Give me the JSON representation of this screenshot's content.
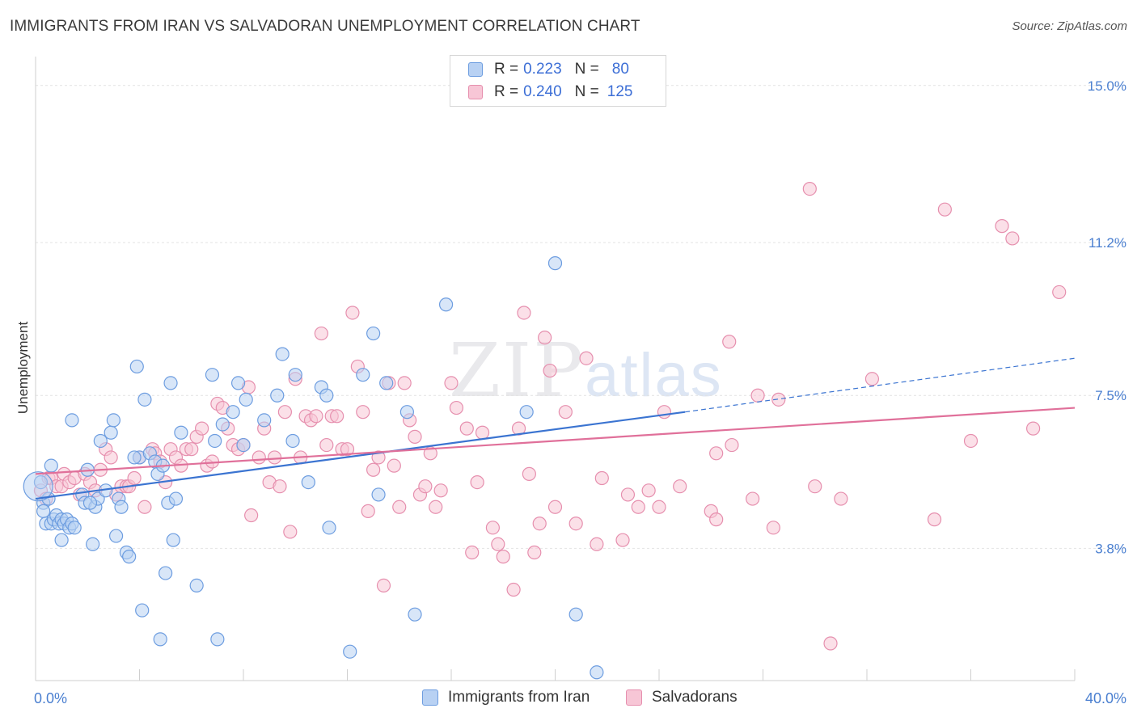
{
  "title": "IMMIGRANTS FROM IRAN VS SALVADORAN UNEMPLOYMENT CORRELATION CHART",
  "source": "Source: ZipAtlas.com",
  "watermark": {
    "zip": "ZIP",
    "atlas": "atlas"
  },
  "legend_top": [
    {
      "r_label": "R =",
      "r_value": "0.223",
      "n_label": "N =",
      "n_value": "80"
    },
    {
      "r_label": "R =",
      "r_value": "0.240",
      "n_label": "N =",
      "n_value": "125"
    }
  ],
  "colors": {
    "blue_fill": "#b8d1f3",
    "blue_stroke": "#6d9de0",
    "blue_line": "#3b74d1",
    "pink_fill": "#f7c6d6",
    "pink_stroke": "#e68fae",
    "pink_line": "#e0709a",
    "grid": "#e2e2e2",
    "axis_text": "#4a7fd0"
  },
  "chart_data": {
    "type": "scatter",
    "title": "IMMIGRANTS FROM IRAN VS SALVADORAN UNEMPLOYMENT CORRELATION CHART",
    "xlabel": "",
    "ylabel": "Unemployment",
    "xlim": [
      0,
      40
    ],
    "ylim": [
      0.6,
      15.7
    ],
    "x_tick_labels": [
      "0.0%",
      "40.0%"
    ],
    "y_ticks": [
      3.8,
      7.5,
      11.2,
      15.0
    ],
    "y_tick_labels": [
      "3.8%",
      "7.5%",
      "11.2%",
      "15.0%"
    ],
    "grid": true,
    "legend": "top-center",
    "series": [
      {
        "name": "Immigrants from Iran",
        "color": "#6d9de0",
        "trend": {
          "x": [
            0,
            25
          ],
          "y": [
            5.0,
            7.1
          ],
          "dashed_to_x": 40,
          "dashed_to_y": 8.4
        },
        "points": [
          [
            0.2,
            5.4
          ],
          [
            0.3,
            4.9
          ],
          [
            0.3,
            4.7
          ],
          [
            0.4,
            4.4
          ],
          [
            0.5,
            5.0
          ],
          [
            0.6,
            4.4
          ],
          [
            0.7,
            4.5
          ],
          [
            0.8,
            4.6
          ],
          [
            0.9,
            4.4
          ],
          [
            1.0,
            4.5
          ],
          [
            1.1,
            4.4
          ],
          [
            1.2,
            4.5
          ],
          [
            1.3,
            4.3
          ],
          [
            1.4,
            4.4
          ],
          [
            1.5,
            4.3
          ],
          [
            1.4,
            6.9
          ],
          [
            1.8,
            5.1
          ],
          [
            1.9,
            4.9
          ],
          [
            2.0,
            5.7
          ],
          [
            2.2,
            3.9
          ],
          [
            2.3,
            4.8
          ],
          [
            2.4,
            5.0
          ],
          [
            2.5,
            6.4
          ],
          [
            2.7,
            5.2
          ],
          [
            2.9,
            6.6
          ],
          [
            3.0,
            6.9
          ],
          [
            3.1,
            4.1
          ],
          [
            3.2,
            5.0
          ],
          [
            3.3,
            4.8
          ],
          [
            3.5,
            3.7
          ],
          [
            3.6,
            3.6
          ],
          [
            3.9,
            8.2
          ],
          [
            4.0,
            6.0
          ],
          [
            4.1,
            2.3
          ],
          [
            4.2,
            7.4
          ],
          [
            4.4,
            6.1
          ],
          [
            4.6,
            5.9
          ],
          [
            4.7,
            5.6
          ],
          [
            4.9,
            5.8
          ],
          [
            5.0,
            3.2
          ],
          [
            5.1,
            4.9
          ],
          [
            5.2,
            7.8
          ],
          [
            5.3,
            4.0
          ],
          [
            5.4,
            5.0
          ],
          [
            5.6,
            6.6
          ],
          [
            4.8,
            1.6
          ],
          [
            6.2,
            2.9
          ],
          [
            6.8,
            8.0
          ],
          [
            6.9,
            6.4
          ],
          [
            7.0,
            1.6
          ],
          [
            7.2,
            6.8
          ],
          [
            7.6,
            7.1
          ],
          [
            7.8,
            7.8
          ],
          [
            8.1,
            7.4
          ],
          [
            8.8,
            6.9
          ],
          [
            9.3,
            7.5
          ],
          [
            9.5,
            8.5
          ],
          [
            9.9,
            6.4
          ],
          [
            10.0,
            8.0
          ],
          [
            10.5,
            5.4
          ],
          [
            11.0,
            7.7
          ],
          [
            11.2,
            7.5
          ],
          [
            11.3,
            4.3
          ],
          [
            12.1,
            1.3
          ],
          [
            12.6,
            8.0
          ],
          [
            13.0,
            9.0
          ],
          [
            13.2,
            5.1
          ],
          [
            13.5,
            7.8
          ],
          [
            14.3,
            7.1
          ],
          [
            14.6,
            2.2
          ],
          [
            15.8,
            9.7
          ],
          [
            18.9,
            7.1
          ],
          [
            20.0,
            10.7
          ],
          [
            20.8,
            2.2
          ],
          [
            21.6,
            0.8
          ],
          [
            0.6,
            5.8
          ],
          [
            1.0,
            4.0
          ],
          [
            2.1,
            4.9
          ],
          [
            3.8,
            6.0
          ],
          [
            8.0,
            6.3
          ]
        ]
      },
      {
        "name": "Salvadorans",
        "color": "#e68fae",
        "trend": {
          "x": [
            0,
            40
          ],
          "y": [
            5.6,
            7.2
          ]
        },
        "points": [
          [
            0.2,
            5.2
          ],
          [
            0.4,
            5.0
          ],
          [
            0.5,
            5.5
          ],
          [
            0.6,
            5.5
          ],
          [
            0.8,
            5.3
          ],
          [
            1.0,
            5.3
          ],
          [
            1.1,
            5.6
          ],
          [
            1.3,
            5.4
          ],
          [
            1.5,
            5.5
          ],
          [
            1.7,
            5.1
          ],
          [
            1.9,
            5.6
          ],
          [
            2.1,
            5.4
          ],
          [
            2.3,
            5.2
          ],
          [
            2.5,
            5.7
          ],
          [
            2.7,
            6.2
          ],
          [
            2.9,
            6.0
          ],
          [
            3.1,
            5.1
          ],
          [
            3.3,
            5.3
          ],
          [
            3.5,
            5.3
          ],
          [
            3.6,
            5.3
          ],
          [
            3.8,
            5.5
          ],
          [
            4.0,
            6.0
          ],
          [
            4.2,
            4.8
          ],
          [
            4.5,
            6.2
          ],
          [
            4.6,
            6.1
          ],
          [
            4.8,
            5.9
          ],
          [
            5.0,
            5.4
          ],
          [
            5.2,
            6.2
          ],
          [
            5.4,
            6.0
          ],
          [
            5.6,
            5.8
          ],
          [
            5.8,
            6.2
          ],
          [
            6.0,
            6.2
          ],
          [
            6.2,
            6.5
          ],
          [
            6.4,
            6.7
          ],
          [
            6.6,
            5.8
          ],
          [
            6.8,
            5.9
          ],
          [
            7.0,
            7.3
          ],
          [
            7.2,
            7.2
          ],
          [
            7.4,
            6.7
          ],
          [
            7.6,
            6.3
          ],
          [
            7.8,
            6.2
          ],
          [
            8.0,
            6.3
          ],
          [
            8.2,
            7.7
          ],
          [
            8.3,
            4.6
          ],
          [
            8.6,
            6.0
          ],
          [
            8.8,
            6.7
          ],
          [
            9.0,
            5.4
          ],
          [
            9.2,
            6.0
          ],
          [
            9.4,
            5.3
          ],
          [
            9.6,
            7.1
          ],
          [
            9.8,
            4.2
          ],
          [
            10.0,
            7.9
          ],
          [
            10.2,
            6.0
          ],
          [
            10.4,
            7.0
          ],
          [
            10.6,
            6.9
          ],
          [
            10.8,
            7.0
          ],
          [
            11.0,
            9.0
          ],
          [
            11.2,
            6.3
          ],
          [
            11.4,
            7.0
          ],
          [
            11.6,
            7.0
          ],
          [
            11.8,
            6.2
          ],
          [
            12.0,
            6.2
          ],
          [
            12.2,
            9.5
          ],
          [
            12.4,
            8.2
          ],
          [
            12.6,
            7.1
          ],
          [
            12.8,
            4.7
          ],
          [
            13.0,
            5.7
          ],
          [
            13.2,
            6.0
          ],
          [
            13.4,
            2.9
          ],
          [
            13.6,
            7.8
          ],
          [
            13.8,
            5.8
          ],
          [
            14.0,
            4.8
          ],
          [
            14.2,
            7.8
          ],
          [
            14.4,
            6.9
          ],
          [
            14.6,
            6.5
          ],
          [
            14.8,
            5.1
          ],
          [
            15.0,
            5.3
          ],
          [
            15.2,
            6.1
          ],
          [
            15.4,
            4.8
          ],
          [
            15.6,
            5.2
          ],
          [
            16.0,
            7.8
          ],
          [
            16.2,
            7.2
          ],
          [
            16.6,
            6.7
          ],
          [
            16.8,
            3.7
          ],
          [
            17.0,
            5.4
          ],
          [
            17.2,
            6.6
          ],
          [
            17.6,
            4.3
          ],
          [
            17.8,
            3.9
          ],
          [
            18.0,
            3.6
          ],
          [
            18.4,
            2.8
          ],
          [
            18.6,
            6.7
          ],
          [
            18.8,
            9.5
          ],
          [
            19.0,
            5.6
          ],
          [
            19.2,
            3.7
          ],
          [
            19.4,
            4.4
          ],
          [
            19.6,
            8.9
          ],
          [
            19.8,
            8.1
          ],
          [
            20.0,
            4.8
          ],
          [
            20.4,
            7.1
          ],
          [
            20.8,
            4.4
          ],
          [
            21.2,
            8.4
          ],
          [
            21.6,
            3.9
          ],
          [
            21.8,
            5.5
          ],
          [
            22.6,
            4.0
          ],
          [
            22.8,
            5.1
          ],
          [
            23.2,
            4.8
          ],
          [
            23.6,
            5.2
          ],
          [
            24.0,
            4.8
          ],
          [
            24.2,
            7.1
          ],
          [
            24.8,
            5.3
          ],
          [
            26.0,
            4.7
          ],
          [
            26.2,
            6.1
          ],
          [
            26.8,
            6.3
          ],
          [
            26.2,
            4.5
          ],
          [
            26.7,
            8.8
          ],
          [
            27.6,
            5.0
          ],
          [
            27.8,
            7.5
          ],
          [
            28.4,
            4.3
          ],
          [
            28.6,
            7.4
          ],
          [
            29.8,
            12.5
          ],
          [
            30.0,
            5.3
          ],
          [
            30.6,
            1.5
          ],
          [
            31.0,
            5.0
          ],
          [
            32.2,
            7.9
          ],
          [
            34.6,
            4.5
          ]
        ]
      }
    ],
    "extra_points_salvadorans": [
      [
        35.0,
        12.0
      ],
      [
        36.0,
        6.4
      ],
      [
        37.2,
        11.6
      ],
      [
        37.6,
        11.3
      ],
      [
        38.4,
        6.7
      ],
      [
        39.4,
        10.0
      ]
    ]
  },
  "bottom_legend": [
    {
      "label": "Immigrants from Iran"
    },
    {
      "label": "Salvadorans"
    }
  ]
}
